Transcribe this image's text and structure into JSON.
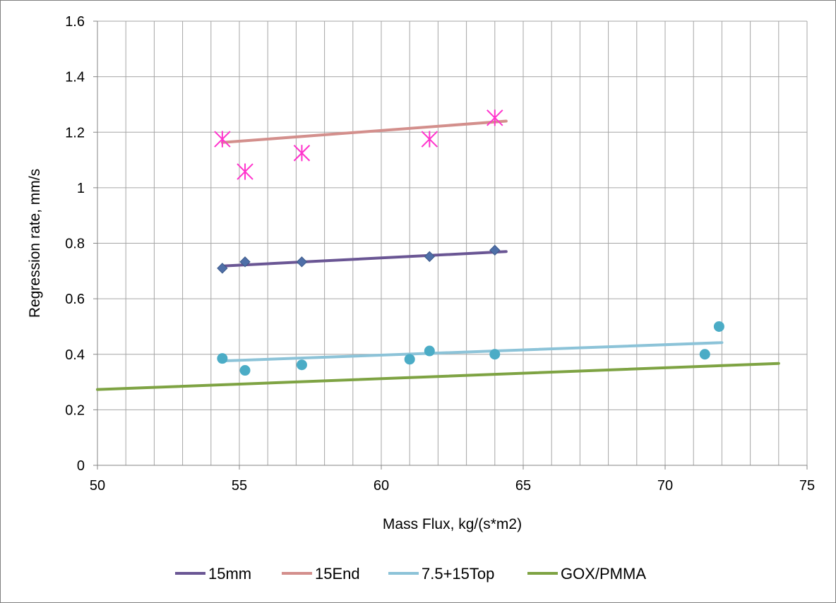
{
  "chart_data": {
    "type": "scatter",
    "xlabel": "Mass Flux, kg/(s*m2)",
    "ylabel": "Regression rate, mm/s",
    "xlim": [
      50,
      75
    ],
    "ylim": [
      0,
      1.6
    ],
    "xticks": [
      50,
      55,
      60,
      65,
      70,
      75
    ],
    "xtick_labels": [
      "50",
      "55",
      "60",
      "65",
      "70",
      "75"
    ],
    "x_minor_step": 1,
    "yticks": [
      0,
      0.2,
      0.4,
      0.6,
      0.8,
      1.0,
      1.2,
      1.4,
      1.6
    ],
    "ytick_labels": [
      "0",
      "0.2",
      "0.4",
      "0.6",
      "0.8",
      "1",
      "1.2",
      "1.4",
      "1.6"
    ],
    "grid": true,
    "legend_position": "bottom",
    "points": [
      {
        "marker": "diamond",
        "color": "#4f6fa8",
        "points": [
          [
            54.4,
            0.71
          ],
          [
            55.2,
            0.733
          ],
          [
            57.2,
            0.733
          ],
          [
            61.7,
            0.752
          ],
          [
            64.0,
            0.775
          ]
        ]
      },
      {
        "marker": "star",
        "color": "#ff33cc",
        "points": [
          [
            54.4,
            1.175
          ],
          [
            55.2,
            1.058
          ],
          [
            57.2,
            1.125
          ],
          [
            61.7,
            1.175
          ],
          [
            64.0,
            1.252
          ]
        ]
      },
      {
        "marker": "circle",
        "color": "#4bacc6",
        "points": [
          [
            54.4,
            0.385
          ],
          [
            55.2,
            0.342
          ],
          [
            57.2,
            0.362
          ],
          [
            61.0,
            0.382
          ],
          [
            61.7,
            0.412
          ],
          [
            64.0,
            0.4
          ],
          [
            71.4,
            0.4
          ],
          [
            71.9,
            0.5
          ]
        ]
      }
    ],
    "series": [
      {
        "name": "15mm",
        "color": "#6a5694",
        "x": [
          54.4,
          64.4
        ],
        "y": [
          0.718,
          0.77
        ]
      },
      {
        "name": "15End",
        "color": "#d38f8c",
        "x": [
          54.4,
          64.4
        ],
        "y": [
          1.163,
          1.24
        ]
      },
      {
        "name": "7.5+15Top",
        "color": "#8cc3d8",
        "x": [
          54.4,
          72.0
        ],
        "y": [
          0.376,
          0.442
        ]
      },
      {
        "name": "GOX/PMMA",
        "color": "#7ea343",
        "x": [
          50.0,
          74.0
        ],
        "y": [
          0.273,
          0.367
        ]
      }
    ]
  }
}
